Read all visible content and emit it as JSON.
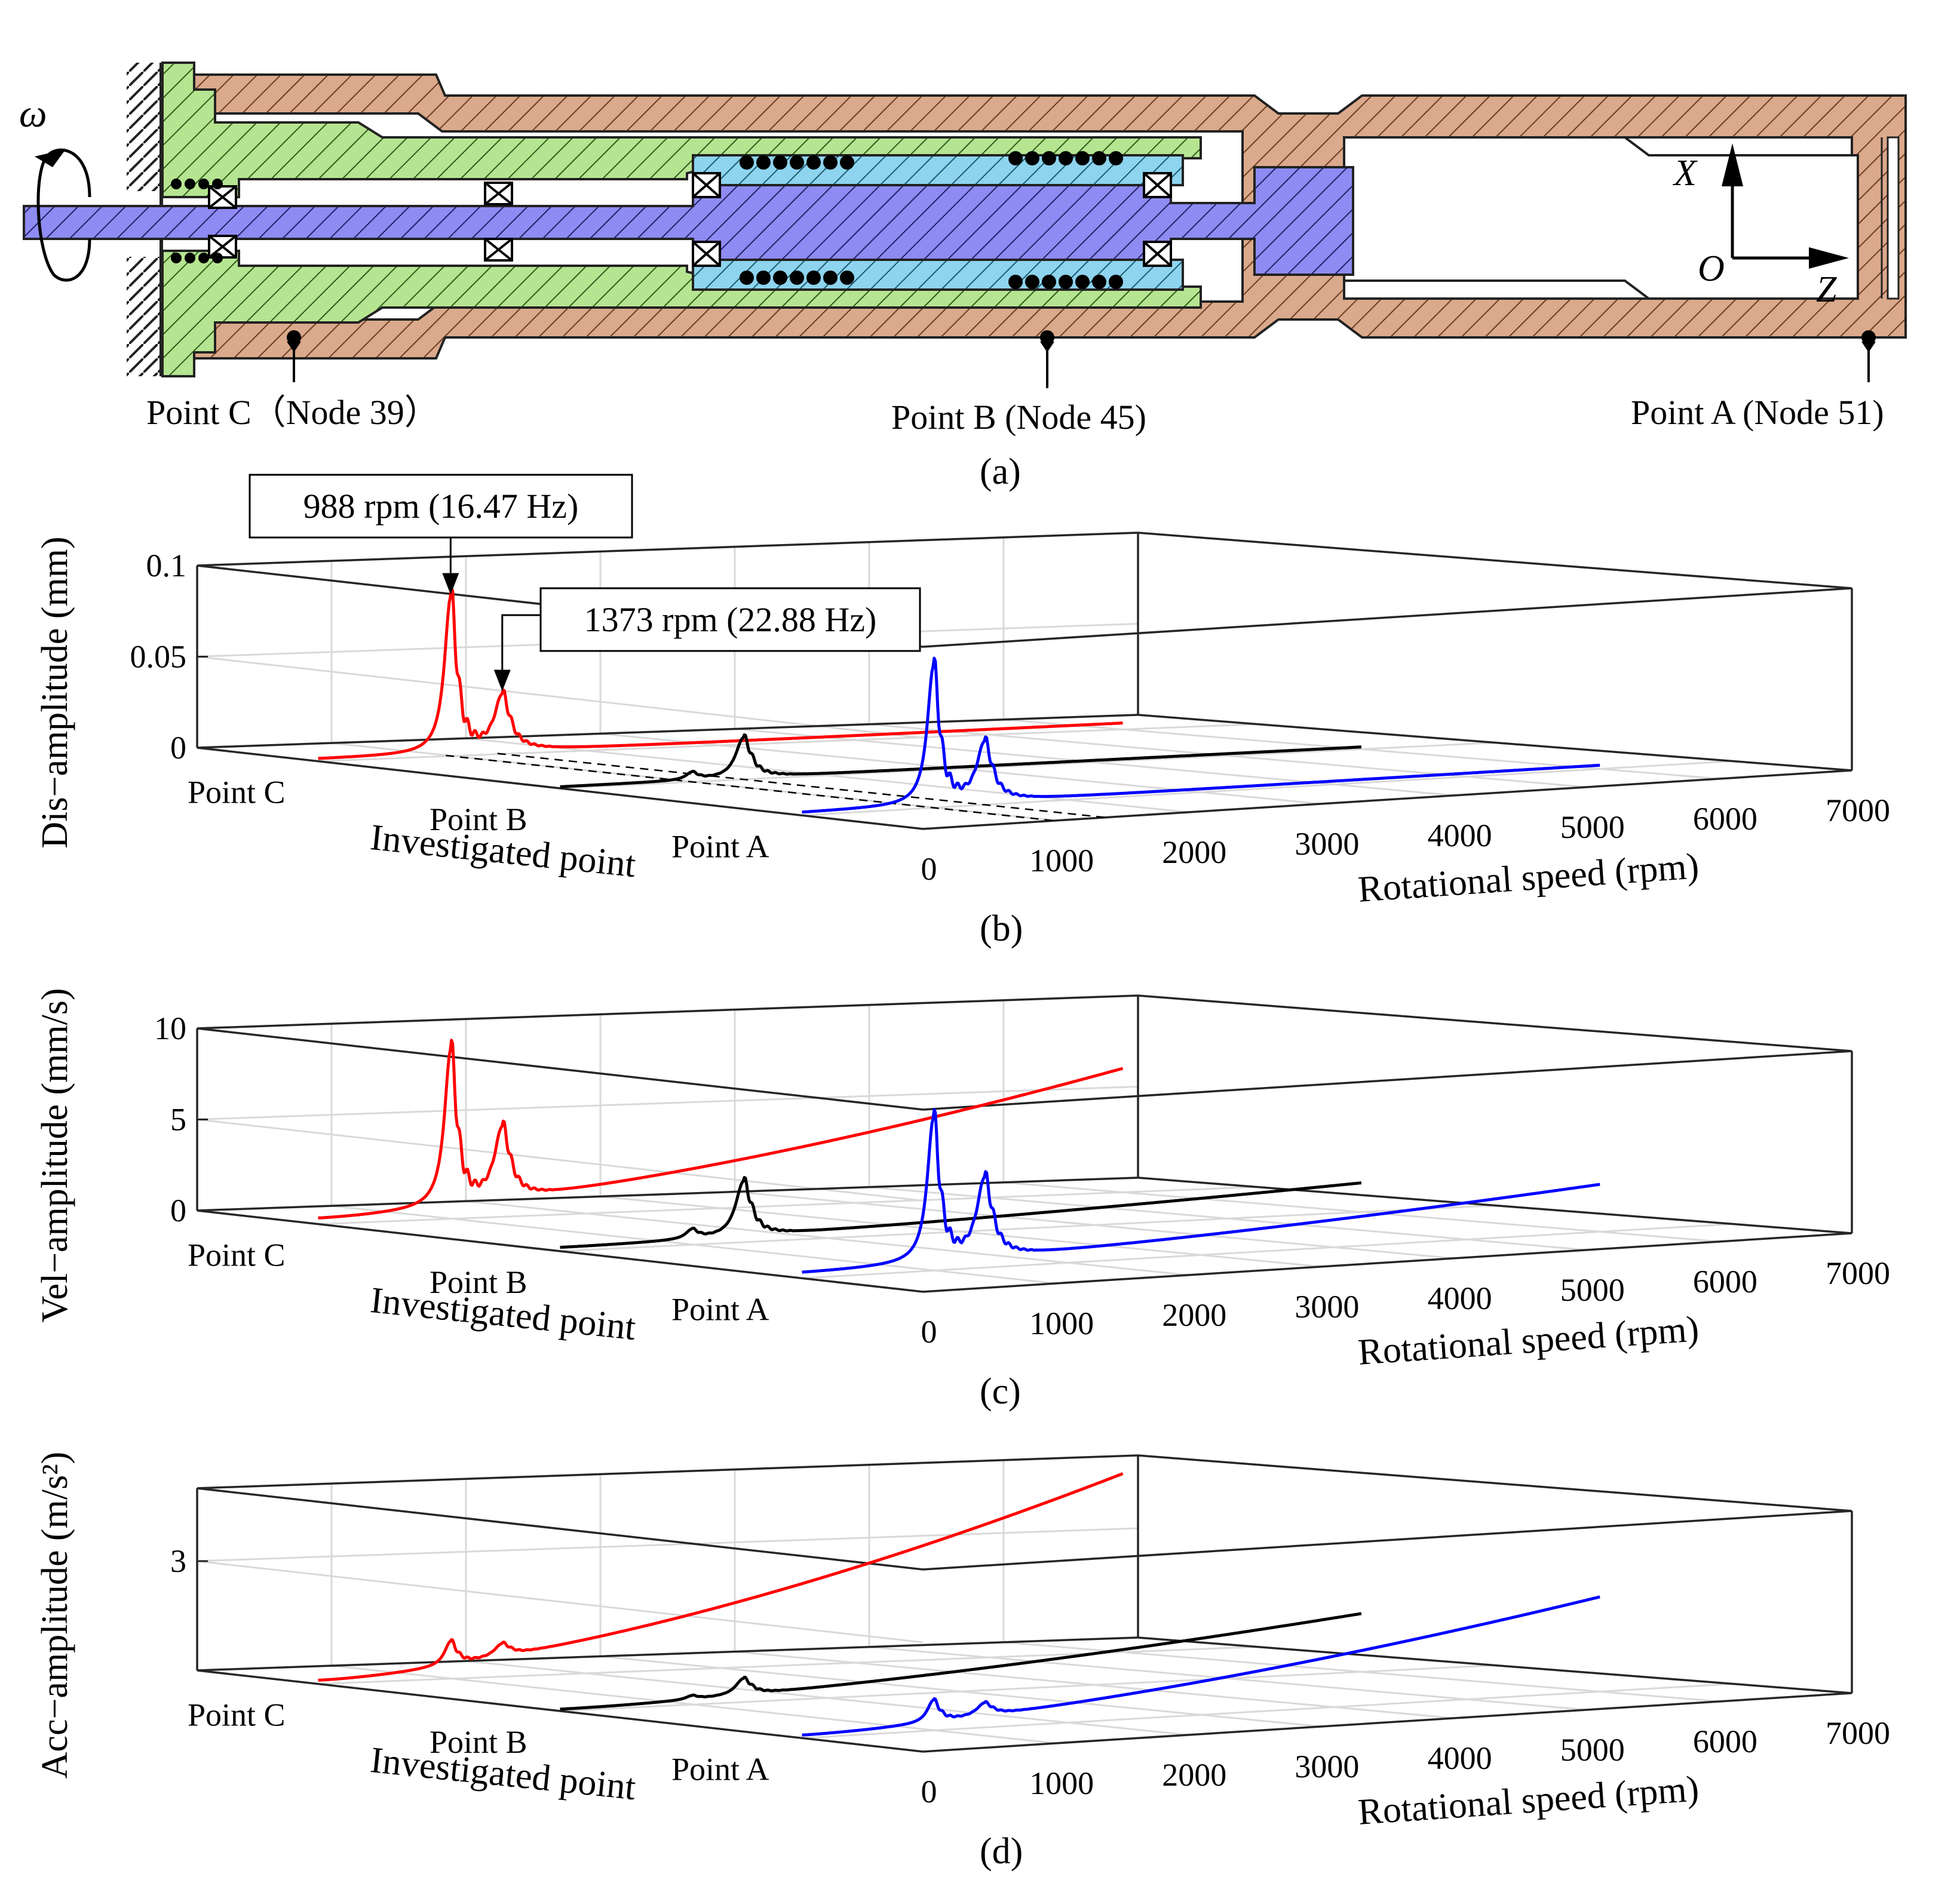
{
  "figure_a": {
    "panel_label": "(a)",
    "omega_label": "ω",
    "axis_x_label": "X",
    "axis_o_label": "O",
    "axis_z_label": "Z",
    "points": [
      {
        "name": "Point C",
        "label": "Point C（Node 39）"
      },
      {
        "name": "Point B",
        "label": "Point B (Node 45)"
      },
      {
        "name": "Point A",
        "label": "Point A (Node 51)"
      }
    ],
    "colors": {
      "housing": "#d9a98a",
      "bearing_seat": "#b5e38f",
      "shaft": "#8f8cf2",
      "sleeve": "#8ed4ee",
      "outline": "#222222"
    }
  },
  "chart_data": [
    {
      "type": "line",
      "id": "b",
      "panel_label": "(b)",
      "zlabel": "Dis−amplitude (mm)",
      "xlabel": "Rotational speed (rpm)",
      "ylabel": "Investigated point",
      "x_ticks": [
        "0",
        "1000",
        "2000",
        "3000",
        "4000",
        "5000",
        "6000",
        "7000"
      ],
      "xlim": [
        0,
        7000
      ],
      "y_categories": [
        "Point C",
        "Point B",
        "Point A"
      ],
      "z_ticks": [
        {
          "value": 0,
          "label": "0"
        },
        {
          "value": 0.05,
          "label": "0.05"
        },
        {
          "value": 0.1,
          "label": "0.1"
        }
      ],
      "zlim": [
        0,
        0.1
      ],
      "peak1_rpm": 988,
      "peak2_rpm": 1373,
      "annotations": [
        {
          "text": "988 rpm (16.47 Hz)",
          "x": 988,
          "series": "Point C"
        },
        {
          "text": "1373 rpm (22.88 Hz)",
          "x": 1373,
          "series": "Point C"
        }
      ],
      "series": [
        {
          "name": "Point C",
          "color": "#ff0000",
          "peak1": 0.085,
          "peak2": 0.03,
          "tail_start": 0.0012,
          "tail_end": 0.0035
        },
        {
          "name": "Point B",
          "color": "#000000",
          "peak1": 0.004,
          "peak2": 0.022,
          "tail_start": 0.0008,
          "tail_end": 0.0012
        },
        {
          "name": "Point A",
          "color": "#0000ff",
          "peak1": 0.075,
          "peak2": 0.032,
          "tail_start": 0.0015,
          "tail_end": 0.002
        }
      ]
    },
    {
      "type": "line",
      "id": "c",
      "panel_label": "(c)",
      "zlabel": "Vel−amplitude (mm/s)",
      "xlabel": "Rotational speed (rpm)",
      "ylabel": "Investigated point",
      "x_ticks": [
        "0",
        "1000",
        "2000",
        "3000",
        "4000",
        "5000",
        "6000",
        "7000"
      ],
      "xlim": [
        0,
        7000
      ],
      "y_categories": [
        "Point C",
        "Point B",
        "Point A"
      ],
      "z_ticks": [
        {
          "value": 0,
          "label": "0"
        },
        {
          "value": 5,
          "label": "5"
        },
        {
          "value": 10,
          "label": "10"
        }
      ],
      "zlim": [
        0,
        10
      ],
      "peak1_rpm": 988,
      "peak2_rpm": 1373,
      "annotations": [],
      "series": [
        {
          "name": "Point C",
          "color": "#ff0000",
          "peak1": 8.5,
          "peak2": 3.9,
          "tail_start": 0.3,
          "tail_end": 6.8
        },
        {
          "name": "Point B",
          "color": "#000000",
          "peak1": 0.5,
          "peak2": 3.0,
          "tail_start": 0.2,
          "tail_end": 1.6
        },
        {
          "name": "Point A",
          "color": "#0000ff",
          "peak1": 7.8,
          "peak2": 4.3,
          "tail_start": 0.3,
          "tail_end": 2.6
        }
      ]
    },
    {
      "type": "line",
      "id": "d",
      "panel_label": "(d)",
      "zlabel": "Acc−amplitude (m/s²)",
      "xlabel": "Rotational speed (rpm)",
      "ylabel": "Investigated point",
      "x_ticks": [
        "0",
        "1000",
        "2000",
        "3000",
        "4000",
        "5000",
        "6000",
        "7000"
      ],
      "xlim": [
        0,
        7000
      ],
      "y_categories": [
        "Point C",
        "Point B",
        "Point A"
      ],
      "z_ticks": [
        {
          "value": 3,
          "label": "3"
        }
      ],
      "zlim": [
        0,
        5
      ],
      "peak1_rpm": 988,
      "peak2_rpm": 1373,
      "annotations": [],
      "series": [
        {
          "name": "Point C",
          "color": "#ff0000",
          "peak1": 0.65,
          "peak2": 0.35,
          "tail_start": 0.1,
          "tail_end": 4.9
        },
        {
          "name": "Point B",
          "color": "#000000",
          "peak1": 0.1,
          "peak2": 0.45,
          "tail_start": 0.05,
          "tail_end": 1.6
        },
        {
          "name": "Point A",
          "color": "#0000ff",
          "peak1": 0.6,
          "peak2": 0.35,
          "tail_start": 0.08,
          "tail_end": 2.6
        }
      ]
    }
  ]
}
